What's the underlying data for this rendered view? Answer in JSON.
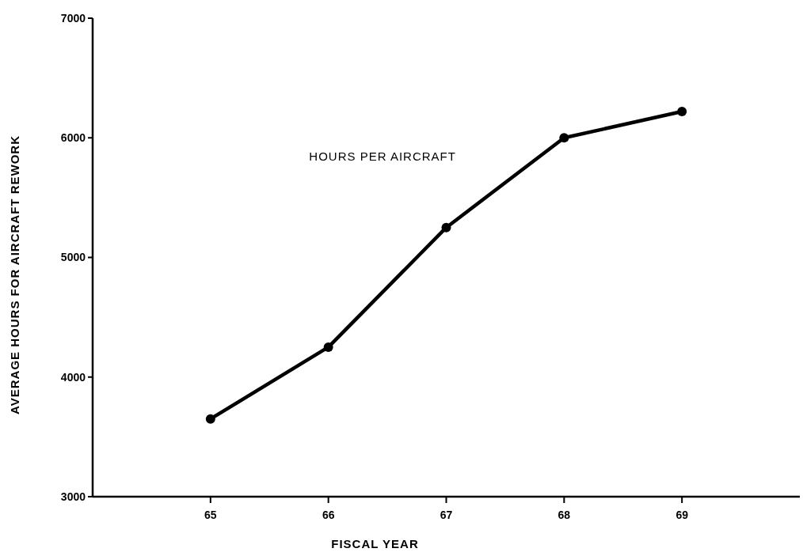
{
  "chart_data": {
    "type": "line",
    "xlabel": "FISCAL YEAR",
    "ylabel": "AVERAGE HOURS FOR AIRCRAFT REWORK",
    "x": [
      65,
      66,
      67,
      68,
      69
    ],
    "series": [
      {
        "color": "#000000",
        "values": [
          3650,
          4250,
          5250,
          6000,
          6220
        ]
      }
    ],
    "xlim": [
      64,
      70
    ],
    "xticks": [
      65,
      66,
      67,
      68,
      69
    ],
    "ylim": [
      3000,
      7000
    ],
    "yticks": [
      3000,
      4000,
      5000,
      6000,
      7000
    ],
    "annotations": [
      "HOURS PER AIRCRAFT"
    ],
    "marker": "circle",
    "line_style": "solid"
  }
}
